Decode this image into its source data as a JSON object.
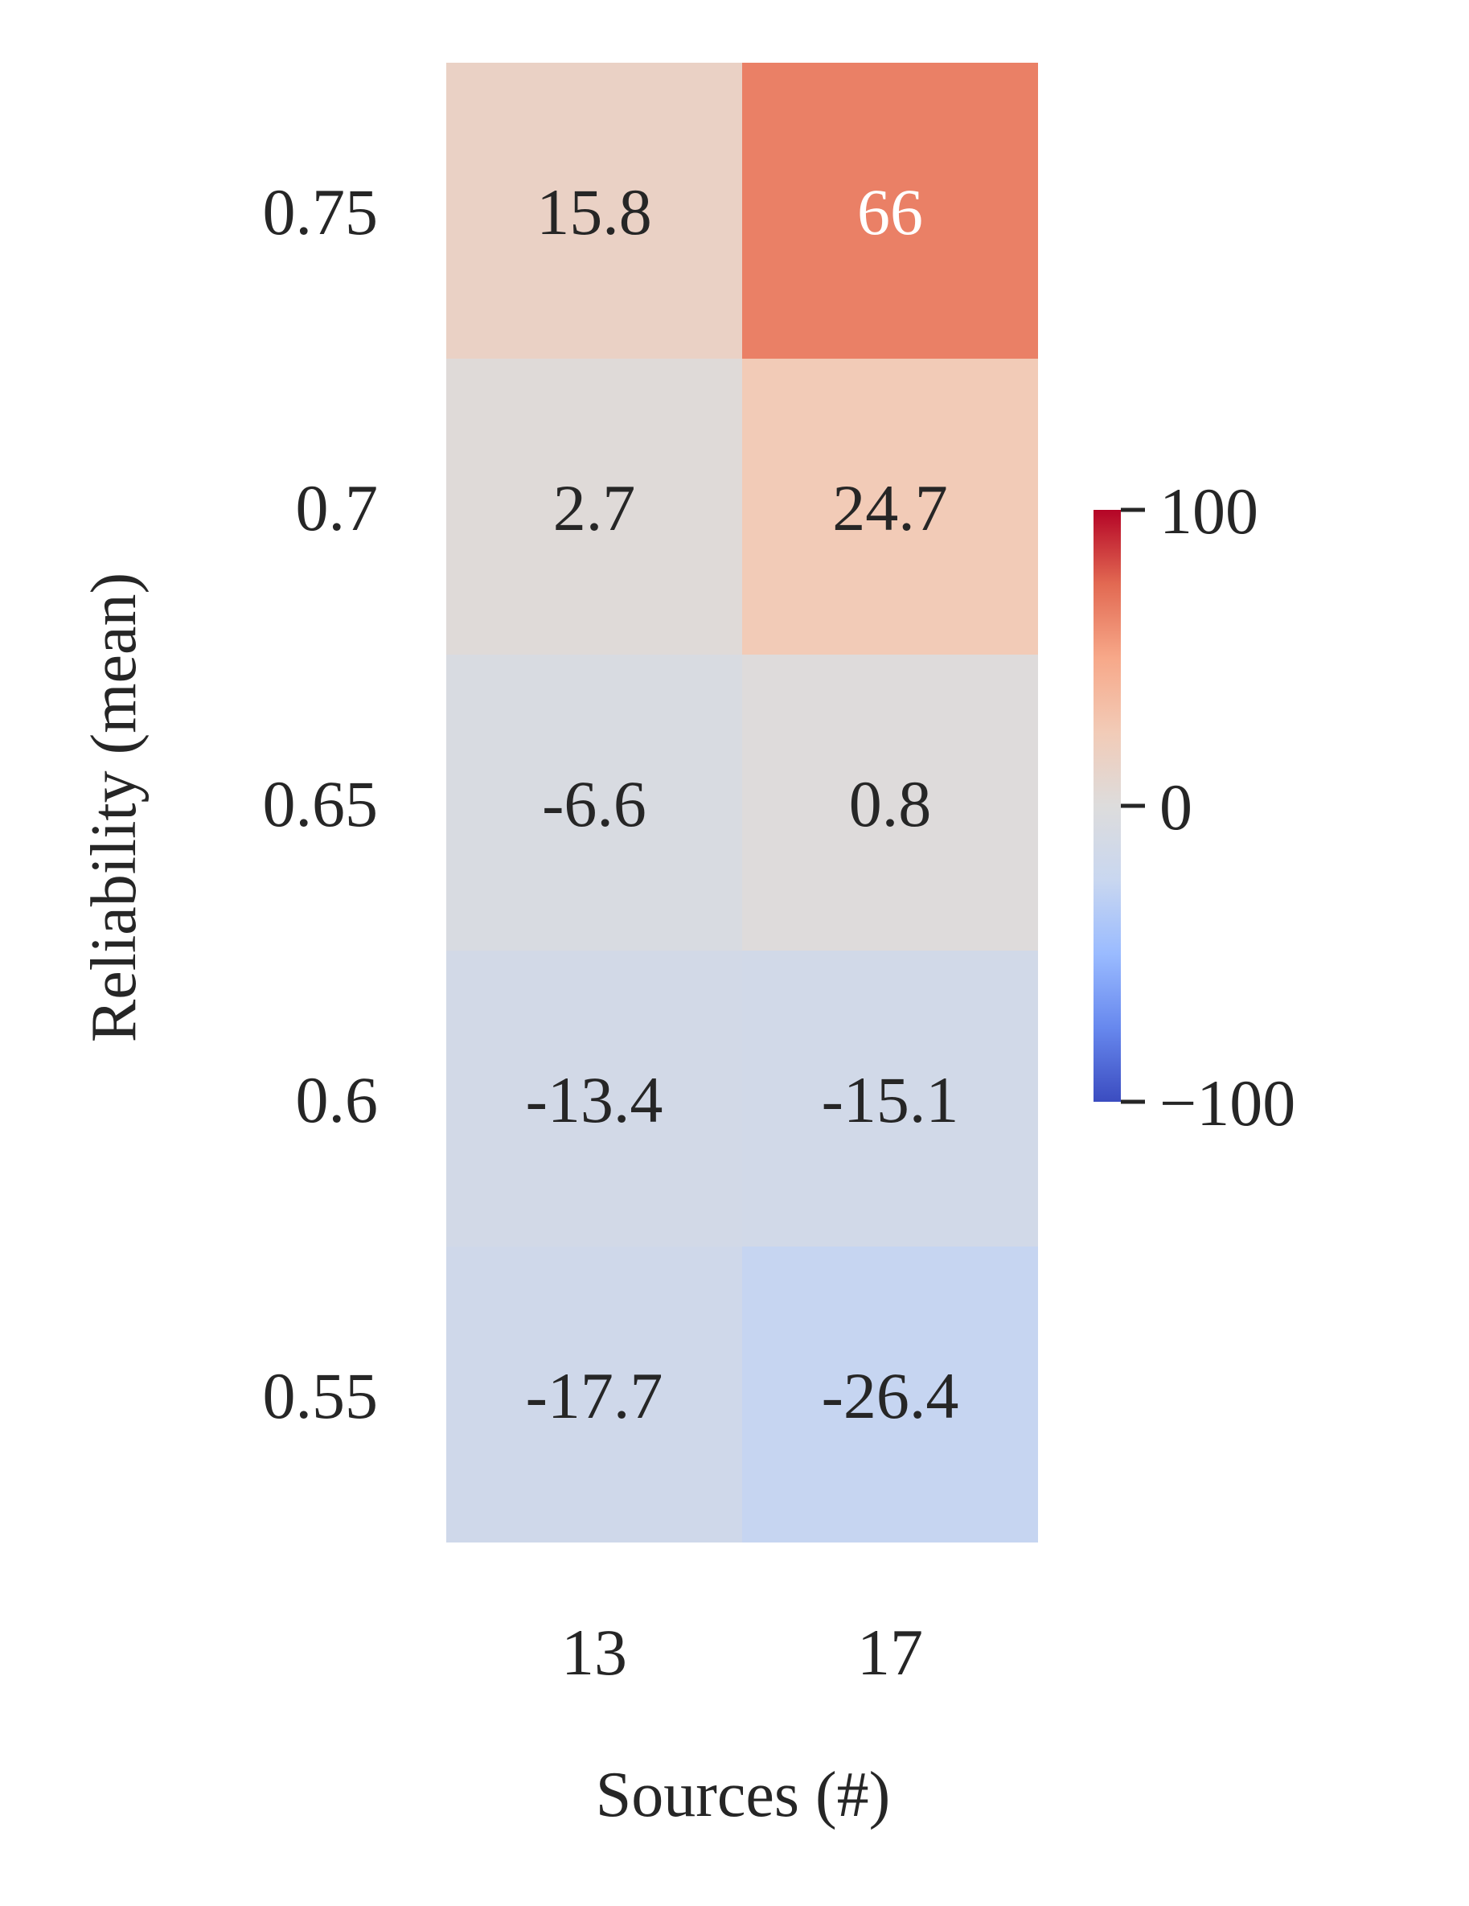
{
  "chart_data": {
    "type": "heatmap",
    "xlabel": "Sources (#)",
    "ylabel": "Reliability (mean)",
    "x_categories": [
      "13",
      "17"
    ],
    "y_categories": [
      "0.75",
      "0.7",
      "0.65",
      "0.6",
      "0.55"
    ],
    "values": [
      [
        15.8,
        66
      ],
      [
        2.7,
        24.7
      ],
      [
        -6.6,
        0.8
      ],
      [
        -13.4,
        -15.1
      ],
      [
        -17.7,
        -26.4
      ]
    ],
    "cell_labels": [
      [
        "15.8",
        "66"
      ],
      [
        "2.7",
        "24.7"
      ],
      [
        "-6.6",
        "0.8"
      ],
      [
        "-13.4",
        "-15.1"
      ],
      [
        "-17.7",
        "-26.4"
      ]
    ],
    "colormap": "coolwarm",
    "vmin": -100,
    "vmax": 100,
    "colorbar_ticks": [
      100,
      0,
      -100
    ],
    "colorbar_tick_labels": [
      "100",
      "0",
      "−100"
    ],
    "cmap_stops": [
      "#3b4cc0",
      "#6788ee",
      "#9abbff",
      "#c9d7f0",
      "#dddcdc",
      "#f2cbb7",
      "#f7a889",
      "#e26952",
      "#b40426"
    ]
  }
}
